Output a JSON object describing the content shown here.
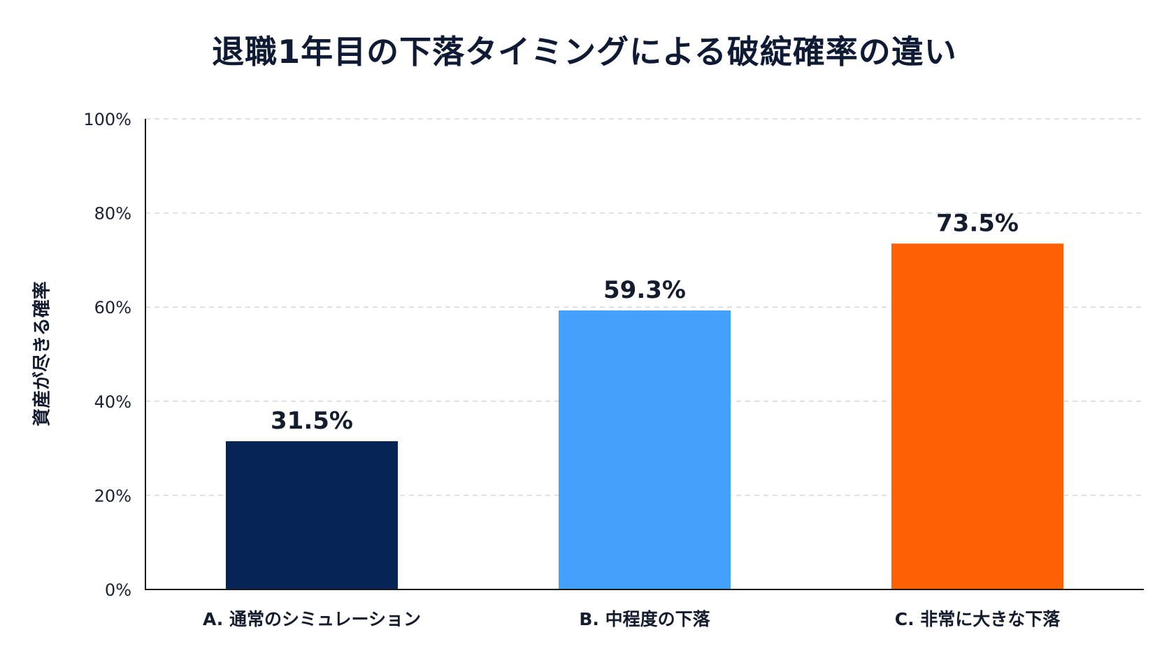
{
  "chart_data": {
    "type": "bar",
    "title": "退職1年目の下落タイミングによる破綻確率の違い",
    "xlabel": "",
    "ylabel": "資産が尽きる確率",
    "categories": [
      "A. 通常のシミュレーション",
      "B. 中程度の下落",
      "C. 非常に大きな下落"
    ],
    "values": [
      31.5,
      59.3,
      73.5
    ],
    "value_labels": [
      "31.5%",
      "59.3%",
      "73.5%"
    ],
    "colors": [
      "#062456",
      "#44a0fb",
      "#fe6005"
    ],
    "ylim": [
      0,
      100
    ],
    "yticks": [
      0,
      20,
      40,
      60,
      80,
      100
    ],
    "ytick_labels": [
      "0%",
      "20%",
      "40%",
      "60%",
      "80%",
      "100%"
    ],
    "grid": true,
    "legend": "none"
  }
}
